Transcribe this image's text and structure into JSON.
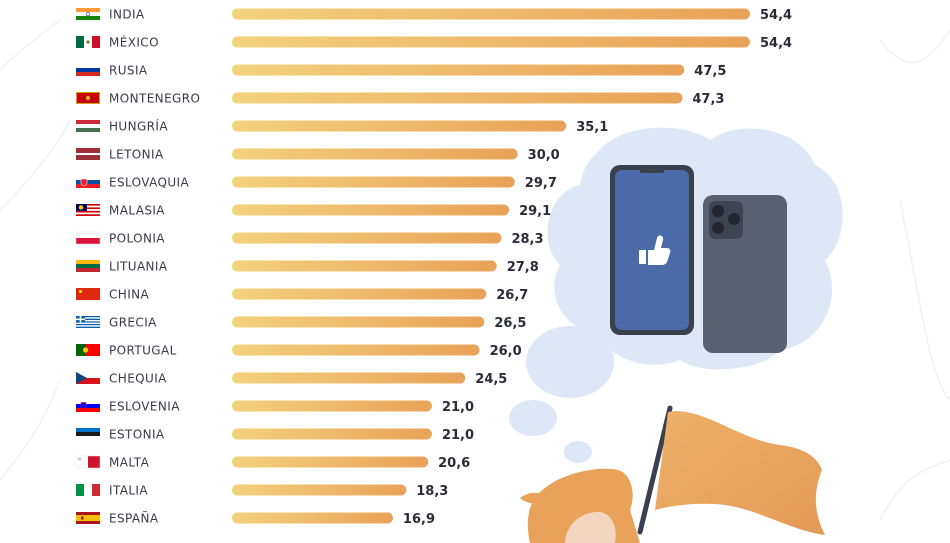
{
  "chart_data": {
    "type": "bar",
    "orientation": "horizontal",
    "title": "",
    "xlabel": "",
    "ylabel": "",
    "xlim": [
      0,
      54.4
    ],
    "grid": false,
    "categories": [
      "INDIA",
      "MÉXICO",
      "RUSIA",
      "MONTENEGRO",
      "HUNGRÍA",
      "LETONIA",
      "ESLOVAQUIA",
      "MALASIA",
      "POLONIA",
      "LITUANIA",
      "CHINA",
      "GRECIA",
      "PORTUGAL",
      "CHEQUIA",
      "ESLOVENIA",
      "ESTONIA",
      "MALTA",
      "ITALIA",
      "ESPAÑA"
    ],
    "values": [
      54.4,
      54.4,
      47.5,
      47.3,
      35.1,
      30.0,
      29.7,
      29.1,
      28.3,
      27.8,
      26.7,
      26.5,
      26.0,
      24.5,
      21.0,
      21.0,
      20.6,
      18.3,
      16.9
    ],
    "value_labels": [
      "54,4",
      "54,4",
      "47,5",
      "47,3",
      "35,1",
      "30,0",
      "29,7",
      "29,1",
      "28,3",
      "27,8",
      "26,7",
      "26,5",
      "26,0",
      "24,5",
      "21,0",
      "21,0",
      "20,6",
      "18,3",
      "16,9"
    ],
    "flags": [
      "india-flag-icon",
      "mexico-flag-icon",
      "russia-flag-icon",
      "montenegro-flag-icon",
      "hungary-flag-icon",
      "latvia-flag-icon",
      "slovakia-flag-icon",
      "malaysia-flag-icon",
      "poland-flag-icon",
      "lithuania-flag-icon",
      "china-flag-icon",
      "greece-flag-icon",
      "portugal-flag-icon",
      "czechia-flag-icon",
      "slovenia-flag-icon",
      "estonia-flag-icon",
      "malta-flag-icon",
      "italy-flag-icon",
      "spain-flag-icon"
    ],
    "colors": {
      "bar_start": "#f4d27e",
      "bar_end": "#e9a259"
    }
  },
  "illustration": {
    "icons": [
      "thought-cloud-icon",
      "phone-front-facebook-icon",
      "thumbs-up-icon",
      "phone-back-icon",
      "hand-icon",
      "orange-flag-icon"
    ],
    "colors": {
      "cloud": "#dce6f4",
      "phone_screen": "#4a6aa8",
      "phone_body": "#565d6d",
      "flag": "#e9a259"
    }
  }
}
